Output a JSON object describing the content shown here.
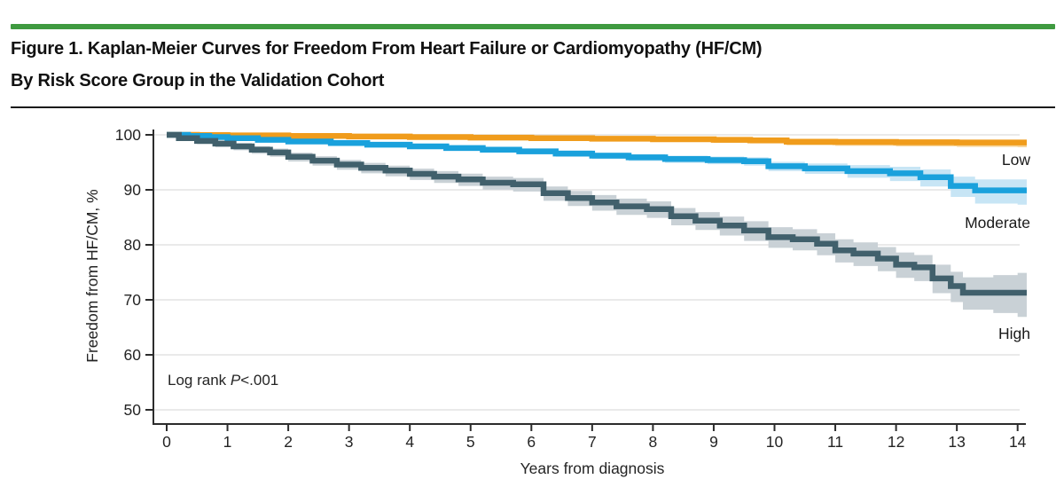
{
  "figure": {
    "accent_bar_color": "#3F9A40",
    "title_line1": "Figure 1. Kaplan-Meier Curves for Freedom From Heart Failure or Cardiomyopathy (HF/CM)",
    "title_line2": "By Risk Score Group in the Validation Cohort"
  },
  "chart_data": {
    "type": "line",
    "subtype": "kaplan-meier-step-with-ci-bands",
    "title": "",
    "xlabel": "Years from diagnosis",
    "ylabel": "Freedom from HF/CM, %",
    "x_ticks": [
      0,
      1,
      2,
      3,
      4,
      5,
      6,
      7,
      8,
      9,
      10,
      11,
      12,
      13,
      14
    ],
    "y_ticks": [
      100,
      90,
      80,
      70,
      60,
      50
    ],
    "xlim": [
      0,
      14
    ],
    "ylim": [
      50,
      100
    ],
    "grid": "horizontal",
    "legend_position": "right-of-curves",
    "axis_color": "#2c2c2c",
    "grid_color": "#e4e4e4",
    "tick_label_color": "#242424",
    "annotation": {
      "prefix": "Log rank ",
      "p_symbol": "P",
      "p_value": "<.001"
    },
    "series": [
      {
        "name": "Low",
        "color": "#F09C1C",
        "band_color": "#F7D59B",
        "points": [
          [
            0,
            100,
            99.8,
            100
          ],
          [
            0.5,
            99.95,
            99.75,
            100
          ],
          [
            1,
            99.9,
            99.65,
            100
          ],
          [
            2,
            99.8,
            99.5,
            100
          ],
          [
            3,
            99.7,
            99.35,
            99.95
          ],
          [
            4,
            99.6,
            99.2,
            99.9
          ],
          [
            5,
            99.5,
            99.1,
            99.8
          ],
          [
            6,
            99.4,
            98.95,
            99.75
          ],
          [
            7,
            99.3,
            98.8,
            99.65
          ],
          [
            8,
            99.2,
            98.7,
            99.6
          ],
          [
            9,
            99.1,
            98.55,
            99.5
          ],
          [
            9.6,
            99,
            98.45,
            99.45
          ],
          [
            10.2,
            98.75,
            98.1,
            99.2
          ],
          [
            11,
            98.7,
            98,
            99.15
          ],
          [
            12,
            98.65,
            97.9,
            99.1
          ],
          [
            13,
            98.6,
            97.8,
            99.1
          ],
          [
            14,
            98.6,
            97.75,
            99.1
          ],
          [
            14.15,
            98.6,
            98.6,
            98.6
          ]
        ]
      },
      {
        "name": "Moderate",
        "color": "#1AA1DC",
        "band_color": "#C7E5F5",
        "points": [
          [
            0,
            100,
            99.9,
            100
          ],
          [
            0.35,
            99.8,
            99.55,
            100
          ],
          [
            0.7,
            99.6,
            99.3,
            99.85
          ],
          [
            1,
            99.4,
            99.1,
            99.7
          ],
          [
            1.5,
            99.1,
            98.75,
            99.4
          ],
          [
            2,
            98.8,
            98.45,
            99.15
          ],
          [
            2.7,
            98.5,
            98.1,
            98.85
          ],
          [
            3.3,
            98.2,
            97.75,
            98.6
          ],
          [
            4,
            97.9,
            97.45,
            98.35
          ],
          [
            4.6,
            97.6,
            97.1,
            98.05
          ],
          [
            5.2,
            97.3,
            96.8,
            97.75
          ],
          [
            5.8,
            97,
            96.45,
            97.5
          ],
          [
            6.4,
            96.6,
            96,
            97.15
          ],
          [
            7,
            96.2,
            95.6,
            96.75
          ],
          [
            7.6,
            95.9,
            95.25,
            96.5
          ],
          [
            8.2,
            95.6,
            94.9,
            96.2
          ],
          [
            8.9,
            95.4,
            94.65,
            96.05
          ],
          [
            9.5,
            95.2,
            94.4,
            95.9
          ],
          [
            9.9,
            94.3,
            93.4,
            95.1
          ],
          [
            10.5,
            93.9,
            92.9,
            94.8
          ],
          [
            11.2,
            93.4,
            92.2,
            94.5
          ],
          [
            11.9,
            93,
            91.6,
            94.2
          ],
          [
            12.4,
            92.3,
            90.6,
            93.7
          ],
          [
            12.9,
            90.7,
            88.7,
            92.4
          ],
          [
            13.3,
            89.9,
            87.5,
            91.9
          ],
          [
            14,
            89.9,
            87.3,
            91.9
          ],
          [
            14.15,
            89.9,
            89.9,
            89.9
          ]
        ]
      },
      {
        "name": "High",
        "color": "#41606C",
        "band_color": "#C9D1D6",
        "points": [
          [
            0,
            100,
            99.7,
            100
          ],
          [
            0.2,
            99.4,
            98.9,
            99.8
          ],
          [
            0.5,
            98.9,
            98.3,
            99.4
          ],
          [
            0.8,
            98.4,
            97.75,
            98.95
          ],
          [
            1.1,
            97.9,
            97.2,
            98.5
          ],
          [
            1.4,
            97.3,
            96.55,
            97.95
          ],
          [
            1.7,
            96.8,
            96,
            97.5
          ],
          [
            2,
            96,
            95.15,
            96.75
          ],
          [
            2.4,
            95.3,
            94.4,
            96.1
          ],
          [
            2.8,
            94.6,
            93.65,
            95.45
          ],
          [
            3.2,
            94,
            93,
            94.9
          ],
          [
            3.6,
            93.5,
            92.45,
            94.4
          ],
          [
            4,
            92.9,
            91.8,
            93.85
          ],
          [
            4.4,
            92.4,
            91.25,
            93.4
          ],
          [
            4.8,
            91.9,
            90.7,
            92.95
          ],
          [
            5.2,
            91.3,
            90.05,
            92.4
          ],
          [
            5.7,
            91,
            89.7,
            92.15
          ],
          [
            6.2,
            89.4,
            88,
            90.6
          ],
          [
            6.6,
            88.5,
            87.05,
            89.8
          ],
          [
            7,
            87.7,
            86.2,
            89.05
          ],
          [
            7.4,
            87,
            85.45,
            88.4
          ],
          [
            7.9,
            86.5,
            84.9,
            87.9
          ],
          [
            8.3,
            85.2,
            83.55,
            86.7
          ],
          [
            8.7,
            84.4,
            82.7,
            85.95
          ],
          [
            9.1,
            83.5,
            81.7,
            85.15
          ],
          [
            9.5,
            82.6,
            80.7,
            84.3
          ],
          [
            9.9,
            81.4,
            79.45,
            83.2
          ],
          [
            10.3,
            81,
            79,
            82.85
          ],
          [
            10.7,
            80.2,
            78.1,
            82.1
          ],
          [
            11,
            79,
            76.8,
            81
          ],
          [
            11.3,
            78.4,
            76.15,
            80.45
          ],
          [
            11.7,
            77.5,
            75.2,
            79.6
          ],
          [
            12,
            76.4,
            74,
            78.6
          ],
          [
            12.3,
            75.9,
            73.4,
            78.15
          ],
          [
            12.6,
            73.9,
            71.2,
            76.4
          ],
          [
            12.9,
            72.5,
            69.6,
            75.1
          ],
          [
            13.1,
            71.3,
            68.2,
            74.1
          ],
          [
            13.6,
            71.3,
            67.6,
            74.5
          ],
          [
            14,
            71.3,
            66.9,
            74.9
          ],
          [
            14.15,
            71.3,
            71.3,
            71.3
          ]
        ]
      }
    ]
  }
}
